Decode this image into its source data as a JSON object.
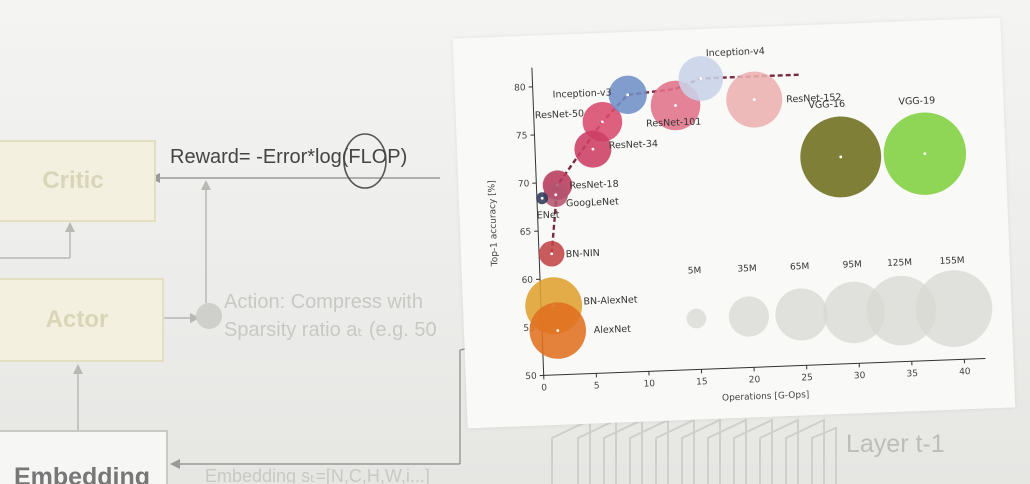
{
  "slide": {
    "critic_label": "Critic",
    "actor_label": "Actor",
    "embedding_label": "Embedding",
    "reward_prefix": "Reward= -Error*",
    "reward_log": "log",
    "reward_suffix": "(FLOP)",
    "action_line1": "Action: Compress with",
    "action_line2": "Sparsity ratio aₜ (e.g. 50",
    "embedding_caption": "Embedding sₜ=[N,C,H,W,i...]",
    "layer_label": "Layer t-1"
  },
  "chart_data": {
    "type": "scatter",
    "title": "",
    "xlabel": "Operations [G-Ops]",
    "ylabel": "Top-1 accuracy [%]",
    "xlim": [
      0,
      42
    ],
    "ylim": [
      50,
      82
    ],
    "xticks": [
      "0",
      "5",
      "10",
      "15",
      "20",
      "25",
      "30",
      "35",
      "40"
    ],
    "yticks": [
      "50",
      "55",
      "60",
      "65",
      "70",
      "75",
      "80"
    ],
    "points": [
      {
        "name": "Inception-v4",
        "x": 16,
        "y": 80.2,
        "params": 35,
        "color": "#c8d3e8"
      },
      {
        "name": "Inception-v3",
        "x": 9,
        "y": 78.8,
        "params": 24,
        "color": "#6f8fc8"
      },
      {
        "name": "ResNet-152",
        "x": 21,
        "y": 77.8,
        "params": 60,
        "color": "#eab0b0"
      },
      {
        "name": "ResNet-101",
        "x": 13.5,
        "y": 77.5,
        "params": 45,
        "color": "#e0728a"
      },
      {
        "name": "ResNet-50",
        "x": 6.5,
        "y": 76.1,
        "params": 26,
        "color": "#d94a6e"
      },
      {
        "name": "ResNet-34",
        "x": 5.5,
        "y": 73.3,
        "params": 22,
        "color": "#cc3d64"
      },
      {
        "name": "ResNet-18",
        "x": 2,
        "y": 69.7,
        "params": 12,
        "color": "#b83a5c"
      },
      {
        "name": "GoogLeNet",
        "x": 1.8,
        "y": 68.7,
        "params": 7,
        "color": "#b45470"
      },
      {
        "name": "ENet",
        "x": 0.5,
        "y": 68.4,
        "params": 0.4,
        "color": "#303a5a"
      },
      {
        "name": "BN-NIN",
        "x": 1.2,
        "y": 62.6,
        "params": 8,
        "color": "#c24448"
      },
      {
        "name": "BN-AlexNet",
        "x": 1.2,
        "y": 57.2,
        "params": 62,
        "color": "#e0a030"
      },
      {
        "name": "AlexNet",
        "x": 1.5,
        "y": 54.6,
        "params": 61,
        "color": "#e07020"
      },
      {
        "name": "VGG-16",
        "x": 29,
        "y": 71.5,
        "params": 138,
        "color": "#6d6d1e"
      },
      {
        "name": "VGG-19",
        "x": 37,
        "y": 71.5,
        "params": 144,
        "color": "#80d040"
      }
    ],
    "size_legend": [
      {
        "label": "5M",
        "x": 14.7,
        "y": 55.3
      },
      {
        "label": "35M",
        "x": 19.7,
        "y": 55.3
      },
      {
        "label": "65M",
        "x": 24.7,
        "y": 55.3
      },
      {
        "label": "95M",
        "x": 29.7,
        "y": 55.3
      },
      {
        "label": "125M",
        "x": 34.2,
        "y": 55.3
      },
      {
        "label": "155M",
        "x": 39.2,
        "y": 55.3
      }
    ],
    "size_legend_values": [
      5,
      35,
      65,
      95,
      125,
      155
    ],
    "pareto_line": [
      [
        1.2,
        62.6
      ],
      [
        2,
        69.7
      ],
      [
        6.5,
        76.1
      ],
      [
        9,
        78.8
      ],
      [
        13.5,
        79.2
      ],
      [
        16,
        80.2
      ],
      [
        25.5,
        80.2
      ]
    ],
    "grid": false,
    "legend_position": "bottom-right"
  }
}
